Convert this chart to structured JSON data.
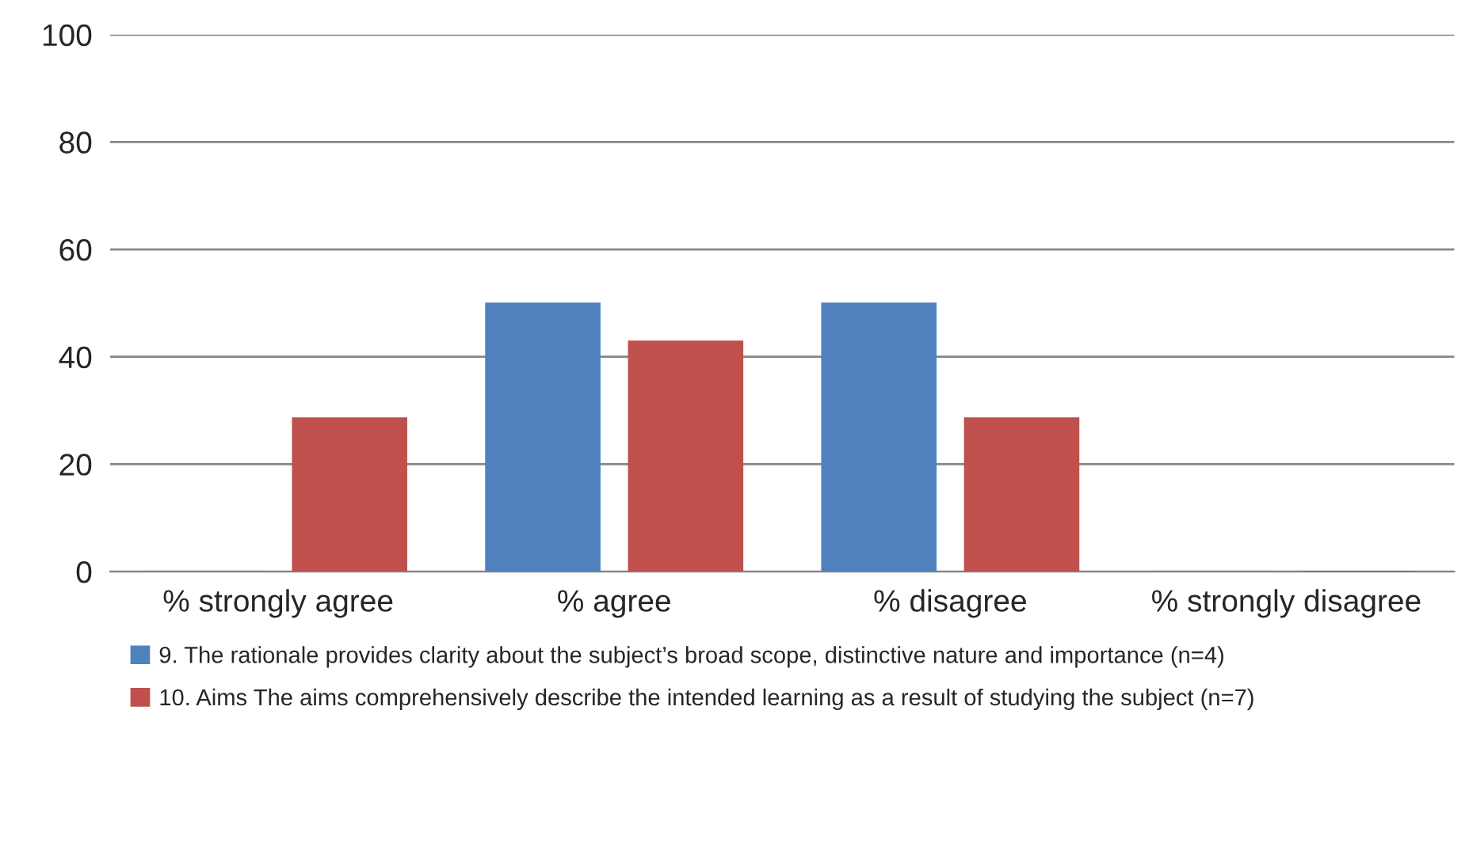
{
  "chart_data": {
    "type": "bar",
    "categories": [
      "% strongly agree",
      "% agree",
      "% disagree",
      "% strongly disagree"
    ],
    "series": [
      {
        "name": "9. The rationale provides clarity about the subject’s broad scope, distinctive nature and importance (n=4)",
        "color": "#4f81bd",
        "values": [
          0,
          50,
          50,
          0
        ]
      },
      {
        "name": "10. Aims The aims comprehensively describe the intended learning as a result of studying the subject (n=7)",
        "color": "#c0504d",
        "values": [
          28.6,
          42.9,
          28.6,
          0
        ]
      }
    ],
    "ylim": [
      0,
      100
    ],
    "yticks": [
      0,
      20,
      40,
      60,
      80,
      100
    ],
    "grid": "y",
    "legend": "bottom"
  }
}
